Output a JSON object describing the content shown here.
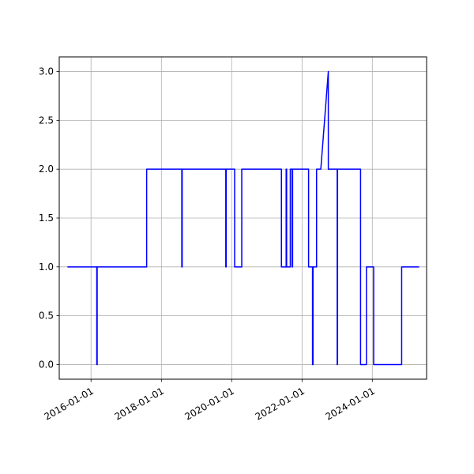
{
  "chart_data": {
    "type": "line",
    "title": "",
    "xlabel": "",
    "ylabel": "",
    "x_is_date": true,
    "xlim": [
      "2015-02-05",
      "2025-07-18"
    ],
    "ylim": [
      -0.15,
      3.15
    ],
    "grid": true,
    "x_ticks": [
      "2016-01-01",
      "2018-01-01",
      "2020-01-01",
      "2022-01-01",
      "2024-01-01"
    ],
    "y_ticks": [
      0.0,
      0.5,
      1.0,
      1.5,
      2.0,
      2.5,
      3.0
    ],
    "y_tick_labels": [
      "0.0",
      "0.5",
      "1.0",
      "1.5",
      "2.0",
      "2.5",
      "3.0"
    ],
    "series": [
      {
        "color": "#0000ff",
        "points": [
          [
            "2015-05-01",
            1
          ],
          [
            "2016-03-01",
            1
          ],
          [
            "2016-03-01",
            0
          ],
          [
            "2016-03-05",
            0
          ],
          [
            "2016-03-05",
            1
          ],
          [
            "2017-08-01",
            1
          ],
          [
            "2017-08-01",
            2
          ],
          [
            "2018-08-01",
            2
          ],
          [
            "2018-08-01",
            1
          ],
          [
            "2018-08-05",
            1
          ],
          [
            "2018-08-05",
            2
          ],
          [
            "2019-11-01",
            2
          ],
          [
            "2019-11-01",
            1
          ],
          [
            "2019-11-05",
            1
          ],
          [
            "2019-11-05",
            2
          ],
          [
            "2020-02-01",
            2
          ],
          [
            "2020-02-01",
            1
          ],
          [
            "2020-04-15",
            1
          ],
          [
            "2020-04-15",
            2
          ],
          [
            "2021-06-01",
            2
          ],
          [
            "2021-06-01",
            1
          ],
          [
            "2021-07-20",
            1
          ],
          [
            "2021-07-20",
            2
          ],
          [
            "2021-07-25",
            2
          ],
          [
            "2021-07-25",
            1
          ],
          [
            "2021-09-01",
            1
          ],
          [
            "2021-09-01",
            2
          ],
          [
            "2021-09-20",
            2
          ],
          [
            "2021-09-20",
            1
          ],
          [
            "2021-09-25",
            1
          ],
          [
            "2021-09-25",
            2
          ],
          [
            "2022-03-10",
            2
          ],
          [
            "2022-03-10",
            1
          ],
          [
            "2022-04-20",
            1
          ],
          [
            "2022-04-20",
            0
          ],
          [
            "2022-04-25",
            0
          ],
          [
            "2022-04-25",
            1
          ],
          [
            "2022-06-01",
            1
          ],
          [
            "2022-06-01",
            2
          ],
          [
            "2022-07-15",
            2
          ],
          [
            "2022-10-01",
            3
          ],
          [
            "2022-10-01",
            2
          ],
          [
            "2023-01-01",
            2
          ],
          [
            "2023-01-01",
            0
          ],
          [
            "2023-01-05",
            0
          ],
          [
            "2023-01-05",
            2
          ],
          [
            "2023-09-01",
            2
          ],
          [
            "2023-09-01",
            0
          ],
          [
            "2023-11-01",
            0
          ],
          [
            "2023-11-01",
            1
          ],
          [
            "2024-01-15",
            1
          ],
          [
            "2024-01-15",
            0
          ],
          [
            "2024-11-01",
            0
          ],
          [
            "2024-11-01",
            1
          ],
          [
            "2025-05-01",
            1
          ]
        ]
      }
    ]
  }
}
